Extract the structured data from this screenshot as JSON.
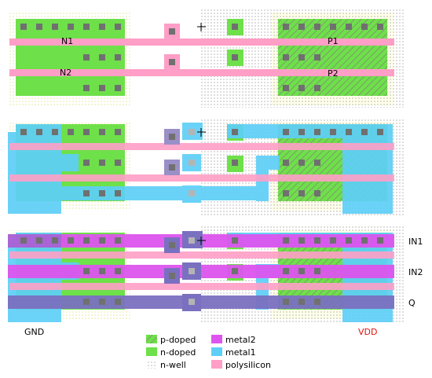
{
  "colors": {
    "ndoped": "#6ee04a",
    "pdoped": "#6ee04a",
    "pdoped_hatch": "#8a8a8a",
    "nwell_dot": "#5a5a5a",
    "nwell_bg": "#ffffe8",
    "metal1": "#5ecff7",
    "metal2": "#dd55ee",
    "poly": "#ff9ec6",
    "via": "#7a70c0",
    "contact": "#707070",
    "vdd_label": "#e01010"
  },
  "labels": {
    "n1": "N1",
    "n2": "N2",
    "p1": "P1",
    "p2": "P2",
    "in1": "IN1",
    "in2": "IN2",
    "q": "Q",
    "gnd": "GND",
    "vdd": "VDD"
  },
  "legend": {
    "items": [
      {
        "key": "p-doped",
        "label": "p-doped",
        "swatch": "pdoped"
      },
      {
        "key": "n-doped",
        "label": "n-doped",
        "swatch": "ndoped"
      },
      {
        "key": "n-well",
        "label": "n-well",
        "swatch": "nwell"
      },
      {
        "key": "metal2",
        "label": "metal2",
        "swatch": "metal2"
      },
      {
        "key": "metal1",
        "label": "metal1",
        "swatch": "metal1"
      },
      {
        "key": "polysilicon",
        "label": "polysilicon",
        "swatch": "poly"
      }
    ]
  }
}
